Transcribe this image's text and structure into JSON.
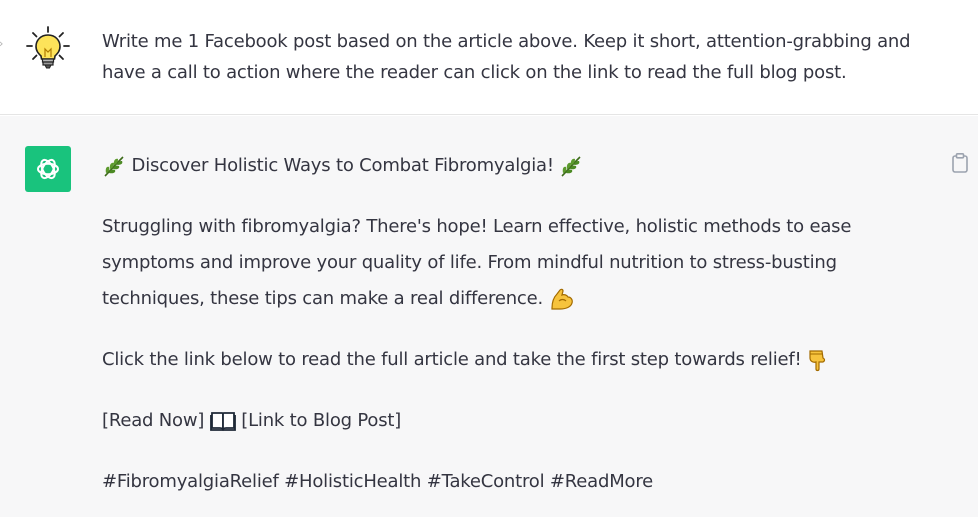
{
  "conversation": {
    "user_message": {
      "avatar_icon": "lightbulb-icon",
      "text": "Write me 1 Facebook post based on the article above. Keep it short, attention-grabbing and have a call to action where the reader can click on the link to read the full blog post."
    },
    "assistant_message": {
      "avatar_icon": "openai-logo-icon",
      "avatar_color": "#19c37d",
      "copy_icon": "clipboard-icon",
      "headline": "Discover Holistic Ways to Combat Fibromyalgia!",
      "headline_emoji": "herb-leaf-icon",
      "body": "Struggling with fibromyalgia? There's hope! Learn effective, holistic methods to ease symptoms and improve your quality of life. From mindful nutrition to stress-busting techniques, these tips can make a real difference.",
      "body_emoji": "flexed-biceps-icon",
      "cta": "Click the link below to read the full article and take the first step towards relief!",
      "cta_emoji": "pointing-down-icon",
      "read_now": "[Read Now]",
      "book_emoji": "open-book-icon",
      "link_text": "[Link to Blog Post]",
      "hashtags": "#FibromyalgiaRelief #HolisticHealth #TakeControl #ReadMore"
    }
  }
}
